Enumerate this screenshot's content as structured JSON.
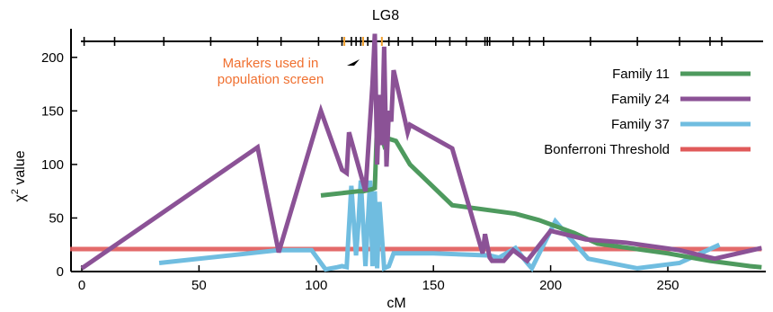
{
  "chart_data": {
    "type": "line",
    "title": "LG8",
    "xlabel": "cM",
    "ylabel": "χ2 value",
    "xlim": [
      -5,
      290
    ],
    "ylim": [
      0,
      225
    ],
    "xticks": [
      0,
      50,
      100,
      150,
      200,
      250
    ],
    "yticks": [
      0,
      50,
      100,
      150,
      200
    ],
    "grid": false,
    "legend_position": "right",
    "annotation": {
      "lines": [
        "Markers used in",
        "population screen"
      ],
      "color": "#f07030"
    },
    "marker_track": {
      "black_markers_cM": [
        1,
        14,
        35,
        55,
        75,
        85,
        101,
        111,
        115,
        117,
        119,
        122,
        131,
        135,
        141,
        151,
        157,
        164,
        172,
        173,
        174,
        184,
        191,
        197,
        217,
        237,
        255,
        268,
        273
      ],
      "orange_markers_cM": [
        112,
        120,
        125,
        128
      ],
      "black_color": "#000000",
      "orange_color": "#f0a030"
    },
    "series": [
      {
        "name": "Family 11",
        "color": "#4e9a5e",
        "x": [
          102,
          118,
          119,
          120,
          124,
          125,
          126,
          129,
          131,
          134,
          140,
          158,
          185,
          195,
          210,
          220,
          250,
          268,
          285,
          290
        ],
        "y": [
          71,
          75,
          75,
          75,
          77,
          78,
          140,
          118,
          124,
          122,
          100,
          62,
          54,
          48,
          36,
          26,
          17,
          10,
          5,
          4
        ]
      },
      {
        "name": "Family 24",
        "color": "#8b5296",
        "x": [
          0,
          75,
          84,
          102,
          111,
          113,
          114,
          121,
          124,
          125,
          126,
          127,
          128,
          129,
          130,
          131,
          132,
          133,
          138,
          139,
          140,
          158,
          171,
          172,
          174,
          175,
          180,
          184,
          190,
          200,
          215,
          232,
          255,
          270,
          290
        ],
        "y": [
          3,
          116,
          18,
          150,
          95,
          92,
          130,
          75,
          175,
          222,
          100,
          165,
          118,
          210,
          98,
          150,
          140,
          188,
          140,
          130,
          137,
          115,
          17,
          35,
          13,
          10,
          10,
          20,
          10,
          38,
          30,
          27,
          20,
          12,
          22
        ]
      },
      {
        "name": "Family 37",
        "color": "#70bde0",
        "x": [
          33,
          84,
          98,
          104,
          109,
          111,
          113,
          115,
          117,
          118,
          119,
          121,
          123,
          124,
          125,
          126,
          127,
          129,
          131,
          133,
          150,
          174,
          178,
          185,
          190,
          192,
          202,
          216,
          237,
          255,
          272
        ],
        "y": [
          8,
          20,
          20,
          2,
          4,
          5,
          4,
          80,
          15,
          44,
          85,
          5,
          85,
          5,
          75,
          3,
          65,
          3,
          5,
          17,
          17,
          15,
          13,
          22,
          8,
          3,
          47,
          12,
          3,
          8,
          25
        ]
      },
      {
        "name": "Bonferroni Threshold",
        "color": "#e05a5a",
        "x": [
          -5,
          290
        ],
        "y": [
          21,
          21
        ]
      }
    ]
  }
}
